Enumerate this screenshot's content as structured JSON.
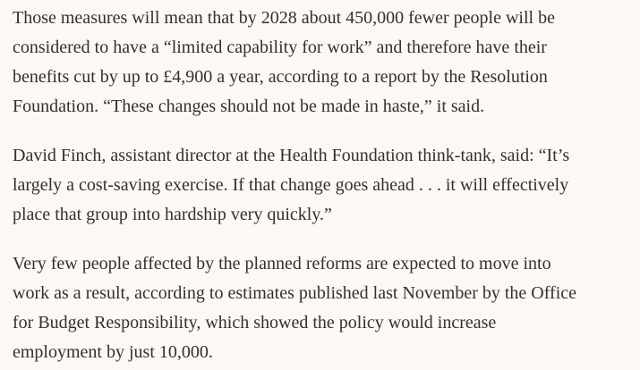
{
  "article": {
    "paragraphs": [
      [
        "Those measures will mean that by 2028 about 450,000 fewer people will be",
        "considered to have a “limited capability for work” and therefore have their",
        "benefits cut by up to £4,900 a year, according to a report by the Resolution",
        "Foundation. “These changes should not be made in haste,” it said."
      ],
      [
        "David Finch, assistant director at the Health Foundation think-tank, said: “It’s",
        "largely a cost-saving exercise. If that change goes ahead . . . it will effectively",
        "place that group into hardship very quickly.”"
      ],
      [
        "Very few people affected by the planned reforms are expected to move into",
        "work as a result, according to estimates published last November by the Office",
        "for Budget Responsibility, which showed the policy would increase",
        "employment by just 10,000."
      ]
    ]
  }
}
